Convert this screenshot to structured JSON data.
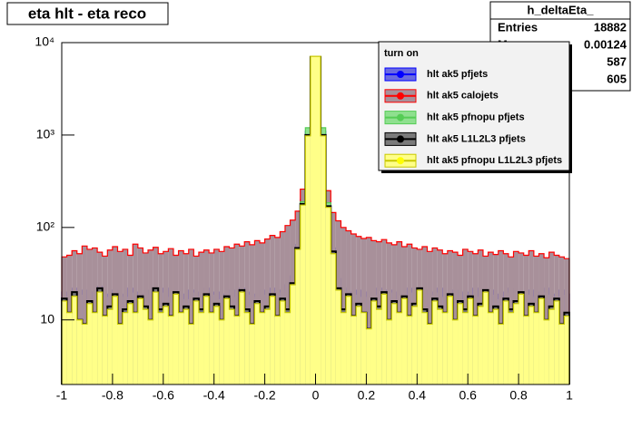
{
  "chart_data": {
    "type": "histogram",
    "title": "eta hlt - eta reco",
    "log_y": true,
    "xlim": [
      -1,
      1
    ],
    "xticks": [
      -1,
      -0.8,
      -0.6,
      -0.4,
      -0.2,
      0,
      0.2,
      0.4,
      0.6,
      0.8,
      1
    ],
    "ylim": [
      2,
      10000
    ],
    "yticks": [
      10,
      {
        "value": 100,
        "label": "10²"
      },
      {
        "value": 1000,
        "label": "10³"
      },
      {
        "value": 10000,
        "label": "10⁴"
      }
    ],
    "bins": [
      -1,
      -0.98,
      -0.96,
      -0.94,
      -0.92,
      -0.9,
      -0.88,
      -0.86,
      -0.84,
      -0.82,
      -0.8,
      -0.78,
      -0.76,
      -0.74,
      -0.72,
      -0.7,
      -0.68,
      -0.66,
      -0.64,
      -0.62,
      -0.6,
      -0.58,
      -0.56,
      -0.54,
      -0.52,
      -0.5,
      -0.48,
      -0.46,
      -0.44,
      -0.42,
      -0.4,
      -0.38,
      -0.36,
      -0.34,
      -0.32,
      -0.3,
      -0.28,
      -0.26,
      -0.24,
      -0.22,
      -0.2,
      -0.18,
      -0.16,
      -0.14,
      -0.12,
      -0.1,
      -0.08,
      -0.06,
      -0.04,
      -0.02,
      0,
      0.02,
      0.04,
      0.06,
      0.08,
      0.1,
      0.12,
      0.14,
      0.16,
      0.18,
      0.2,
      0.22,
      0.24,
      0.26,
      0.28,
      0.3,
      0.32,
      0.34,
      0.36,
      0.38,
      0.4,
      0.42,
      0.44,
      0.46,
      0.48,
      0.5,
      0.52,
      0.54,
      0.56,
      0.58,
      0.6,
      0.62,
      0.64,
      0.66,
      0.68,
      0.7,
      0.72,
      0.74,
      0.76,
      0.78,
      0.8,
      0.82,
      0.84,
      0.86,
      0.88,
      0.9,
      0.92,
      0.94,
      0.96,
      0.98,
      1
    ],
    "legend_title": "turn on",
    "series": [
      {
        "name": "hlt ak5 pfjets",
        "color": "#0000ff",
        "fill": "#6a6ae0",
        "marker_color": "#0000ff",
        "values": [
          20,
          18,
          22,
          19,
          21,
          17,
          20,
          23,
          18,
          19,
          21,
          19,
          18,
          22,
          20,
          17,
          19,
          21,
          18,
          20,
          22,
          18,
          20,
          19,
          17,
          21,
          20,
          18,
          22,
          19,
          20,
          17,
          19,
          21,
          18,
          22,
          20,
          19,
          18,
          21,
          19,
          22,
          20,
          21,
          24,
          30,
          65,
          200,
          1100,
          6500,
          6500,
          1100,
          190,
          60,
          28,
          22,
          20,
          19,
          21,
          18,
          20,
          19,
          22,
          18,
          21,
          20,
          17,
          19,
          22,
          20,
          18,
          21,
          19,
          20,
          22,
          18,
          19,
          21,
          17,
          20,
          19,
          22,
          18,
          20,
          21,
          19,
          17,
          20,
          22,
          18,
          20,
          19,
          21,
          18,
          20,
          22,
          19,
          18,
          21,
          19
        ]
      },
      {
        "name": "hlt ak5 calojets",
        "color": "#ff0000",
        "fill": "#a8909a",
        "marker_color": "#ff0000",
        "values": [
          48,
          50,
          56,
          52,
          63,
          58,
          60,
          54,
          49,
          57,
          62,
          55,
          58,
          50,
          66,
          60,
          53,
          57,
          61,
          52,
          55,
          59,
          50,
          56,
          52,
          58,
          49,
          54,
          57,
          53,
          58,
          55,
          62,
          60,
          66,
          63,
          70,
          65,
          72,
          68,
          75,
          82,
          78,
          90,
          105,
          120,
          150,
          260,
          420,
          400,
          410,
          430,
          250,
          145,
          118,
          100,
          92,
          85,
          80,
          76,
          78,
          72,
          70,
          74,
          68,
          65,
          70,
          62,
          66,
          60,
          58,
          62,
          55,
          60,
          57,
          52,
          56,
          54,
          50,
          58,
          55,
          52,
          57,
          49,
          54,
          51,
          56,
          52,
          48,
          55,
          53,
          50,
          56,
          49,
          52,
          47,
          54,
          50,
          48,
          46
        ]
      },
      {
        "name": "hlt ak5 pfnopu pfjets",
        "color": "#55cc55",
        "fill": "#8fe08f",
        "marker_color": "#55cc55",
        "values": [
          15,
          11,
          17,
          10,
          9,
          14,
          11,
          19,
          10,
          12,
          17,
          9,
          12,
          14,
          11,
          16,
          13,
          10,
          19,
          12,
          13,
          10,
          18,
          11,
          12,
          9,
          15,
          12,
          17,
          11,
          13,
          10,
          16,
          12,
          10,
          19,
          12,
          9,
          14,
          11,
          12,
          17,
          10,
          15,
          12,
          22,
          55,
          190,
          1200,
          6800,
          6800,
          1200,
          185,
          50,
          20,
          12,
          17,
          10,
          13,
          11,
          8,
          15,
          12,
          18,
          9,
          14,
          11,
          16,
          10,
          13,
          20,
          12,
          9,
          15,
          12,
          11,
          17,
          10,
          14,
          12,
          16,
          10,
          13,
          19,
          11,
          12,
          9,
          15,
          12,
          14,
          18,
          10,
          13,
          11,
          16,
          10,
          12,
          15,
          9,
          11
        ]
      },
      {
        "name": "hlt ak5 L1L2L3 pfjets",
        "color": "#000000",
        "fill": "#7a7a7a",
        "marker_color": "#000000",
        "values": [
          17,
          12,
          20,
          10,
          9,
          16,
          12,
          22,
          11,
          14,
          19,
          9,
          13,
          16,
          12,
          18,
          14,
          10,
          22,
          13,
          15,
          11,
          20,
          12,
          14,
          9,
          17,
          13,
          19,
          12,
          15,
          10,
          18,
          14,
          11,
          21,
          13,
          9,
          16,
          12,
          14,
          19,
          11,
          17,
          13,
          25,
          60,
          180,
          1000,
          7000,
          7000,
          1000,
          170,
          55,
          22,
          13,
          19,
          11,
          15,
          12,
          8,
          17,
          14,
          20,
          10,
          16,
          12,
          18,
          11,
          15,
          22,
          13,
          9,
          17,
          14,
          12,
          19,
          10,
          16,
          13,
          18,
          11,
          15,
          21,
          12,
          14,
          9,
          17,
          13,
          16,
          20,
          11,
          15,
          12,
          18,
          10,
          14,
          17,
          9,
          12
        ]
      },
      {
        "name": "hlt ak5 pfnopu L1L2L3 pfjets",
        "color": "#c8c800",
        "fill": "#ffff88",
        "marker_color": "#ffff00",
        "values": [
          16,
          12,
          18,
          10,
          9,
          15,
          12,
          20,
          11,
          13,
          18,
          9,
          12,
          15,
          12,
          17,
          13,
          10,
          20,
          12,
          14,
          11,
          19,
          12,
          13,
          9,
          16,
          12,
          18,
          12,
          14,
          10,
          17,
          13,
          11,
          20,
          12,
          9,
          15,
          12,
          13,
          18,
          11,
          16,
          12,
          24,
          58,
          175,
          980,
          7100,
          7100,
          980,
          165,
          52,
          21,
          12,
          18,
          11,
          14,
          12,
          8,
          16,
          13,
          19,
          10,
          15,
          12,
          17,
          11,
          14,
          21,
          12,
          9,
          16,
          13,
          12,
          18,
          10,
          15,
          12,
          17,
          11,
          14,
          20,
          12,
          13,
          9,
          16,
          12,
          15,
          19,
          11,
          14,
          12,
          17,
          10,
          13,
          16,
          9,
          11
        ]
      }
    ],
    "stats": {
      "title": "h_deltaEta_",
      "rows": [
        {
          "label": "Entries",
          "value": 18882
        },
        {
          "label": "Mean",
          "value": 0.00124
        },
        {
          "value": 587
        },
        {
          "value": 605
        }
      ]
    }
  }
}
